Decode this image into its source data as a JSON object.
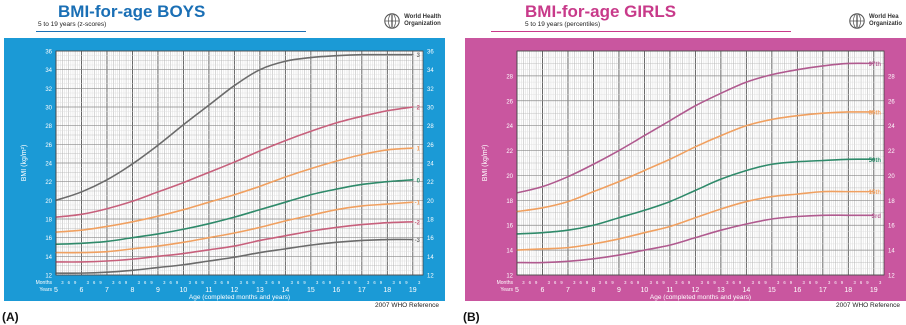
{
  "panels": [
    {
      "label": "(A)",
      "title": "BMI-for-age BOYS",
      "subtitle": "5 to 19 years (z-scores)",
      "org_line1": "World Health",
      "org_line2": "Organization",
      "reference": "2007 WHO Reference",
      "frame_color": "#1b9ad6"
    },
    {
      "label": "(B)",
      "title": "BMI-for-age GIRLS",
      "subtitle": "5 to 19 years (percentiles)",
      "org_line1": "World Hea",
      "org_line2": "Organizatio",
      "reference": "2007 WHO Reference",
      "frame_color": "#c9569f"
    }
  ],
  "chart_data": [
    {
      "type": "line",
      "title": "BMI-for-age BOYS",
      "subtitle": "5 to 19 years (z-scores)",
      "xlabel": "Age (completed months and years)",
      "ylabel": "BMI (kg/m²)",
      "months_label": "Months",
      "years_label": "Years",
      "month_ticks": [
        "3",
        "6",
        "9"
      ],
      "x_ticks": [
        "5",
        "6",
        "7",
        "8",
        "9",
        "10",
        "11",
        "12",
        "13",
        "14",
        "15",
        "16",
        "17",
        "18",
        "19"
      ],
      "xlim": [
        5,
        19.4
      ],
      "y_ticks": [
        "12",
        "14",
        "16",
        "18",
        "20",
        "22",
        "24",
        "26",
        "28",
        "30",
        "32",
        "34",
        "36"
      ],
      "ylim": [
        12,
        36
      ],
      "grid": true,
      "x": [
        5,
        6,
        7,
        8,
        9,
        10,
        11,
        12,
        13,
        14,
        15,
        16,
        17,
        18,
        19
      ],
      "series": [
        {
          "name": "3",
          "color": "#6b6b6b",
          "values": [
            20.0,
            20.9,
            22.2,
            23.9,
            25.9,
            28.1,
            30.2,
            32.3,
            34.0,
            34.9,
            35.3,
            35.5,
            35.6,
            35.6,
            35.6
          ]
        },
        {
          "name": "2",
          "color": "#c7607c",
          "values": [
            18.2,
            18.5,
            19.1,
            19.9,
            20.9,
            21.9,
            23.0,
            24.1,
            25.3,
            26.4,
            27.4,
            28.3,
            29.0,
            29.6,
            30.0
          ]
        },
        {
          "name": "1",
          "color": "#f0a060",
          "values": [
            16.6,
            16.8,
            17.2,
            17.7,
            18.3,
            19.0,
            19.8,
            20.6,
            21.5,
            22.5,
            23.4,
            24.2,
            24.9,
            25.4,
            25.6
          ]
        },
        {
          "name": "0",
          "color": "#2f8a6a",
          "values": [
            15.3,
            15.4,
            15.6,
            16.0,
            16.4,
            16.9,
            17.5,
            18.2,
            19.0,
            19.8,
            20.6,
            21.2,
            21.7,
            22.0,
            22.2
          ]
        },
        {
          "name": "-1",
          "color": "#f0a060",
          "values": [
            14.4,
            14.4,
            14.5,
            14.8,
            15.1,
            15.5,
            16.0,
            16.5,
            17.1,
            17.8,
            18.4,
            19.0,
            19.4,
            19.6,
            19.8
          ]
        },
        {
          "name": "-2",
          "color": "#c7607c",
          "values": [
            13.4,
            13.4,
            13.5,
            13.7,
            14.0,
            14.3,
            14.7,
            15.1,
            15.7,
            16.2,
            16.7,
            17.1,
            17.4,
            17.6,
            17.7
          ]
        },
        {
          "name": "-3",
          "color": "#6b6b6b",
          "values": [
            12.2,
            12.2,
            12.3,
            12.5,
            12.8,
            13.1,
            13.5,
            13.9,
            14.4,
            14.8,
            15.2,
            15.5,
            15.7,
            15.8,
            15.8
          ]
        }
      ]
    },
    {
      "type": "line",
      "title": "BMI-for-age GIRLS",
      "subtitle": "5 to 19 years (percentiles)",
      "xlabel": "Age (completed months and years)",
      "ylabel": "BMI (kg/m²)",
      "months_label": "Months",
      "years_label": "Years",
      "month_ticks": [
        "3",
        "6",
        "9"
      ],
      "x_ticks": [
        "5",
        "6",
        "7",
        "8",
        "9",
        "10",
        "11",
        "12",
        "13",
        "14",
        "15",
        "16",
        "17",
        "18",
        "19"
      ],
      "xlim": [
        5,
        19.4
      ],
      "y_ticks": [
        "12",
        "14",
        "16",
        "18",
        "20",
        "22",
        "24",
        "26",
        "28"
      ],
      "ylim": [
        12,
        30
      ],
      "grid": true,
      "x": [
        5,
        6,
        7,
        8,
        9,
        10,
        11,
        12,
        13,
        14,
        15,
        16,
        17,
        18,
        19
      ],
      "series": [
        {
          "name": "97th",
          "color": "#b05a8f",
          "values": [
            18.6,
            19.1,
            19.9,
            20.9,
            22.0,
            23.2,
            24.4,
            25.6,
            26.6,
            27.5,
            28.1,
            28.5,
            28.8,
            29.0,
            29.0
          ]
        },
        {
          "name": "85th",
          "color": "#f0a060",
          "values": [
            17.1,
            17.4,
            17.9,
            18.7,
            19.5,
            20.4,
            21.3,
            22.3,
            23.2,
            24.0,
            24.5,
            24.8,
            25.0,
            25.1,
            25.1
          ]
        },
        {
          "name": "50th",
          "color": "#2f8a6a",
          "values": [
            15.3,
            15.4,
            15.6,
            16.0,
            16.6,
            17.2,
            17.9,
            18.8,
            19.7,
            20.4,
            20.9,
            21.1,
            21.2,
            21.3,
            21.3
          ]
        },
        {
          "name": "15th",
          "color": "#f0a060",
          "values": [
            14.0,
            14.1,
            14.2,
            14.5,
            14.9,
            15.4,
            15.9,
            16.6,
            17.3,
            17.9,
            18.3,
            18.5,
            18.7,
            18.7,
            18.7
          ]
        },
        {
          "name": "3rd",
          "color": "#b05a8f",
          "values": [
            13.0,
            13.0,
            13.1,
            13.3,
            13.6,
            14.0,
            14.4,
            15.0,
            15.6,
            16.1,
            16.5,
            16.7,
            16.8,
            16.8,
            16.8
          ]
        }
      ]
    }
  ]
}
